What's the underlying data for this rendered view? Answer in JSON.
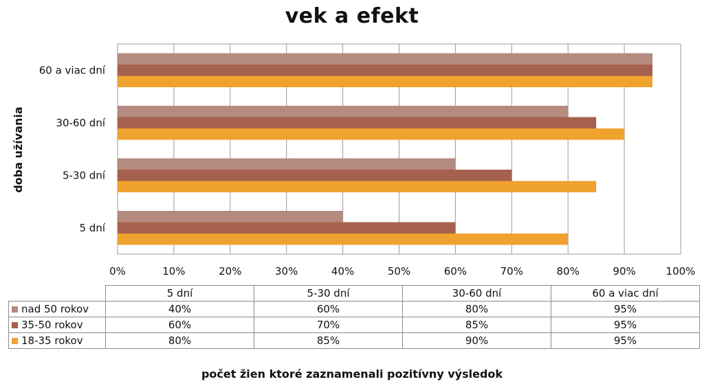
{
  "chart_data": {
    "type": "bar",
    "orientation": "horizontal",
    "title": "vek a efekt",
    "ylabel": "doba užívania",
    "xlabel": "počet žien ktoré zaznamenali pozitívny výsledok",
    "categories": [
      "5 dní",
      "5-30 dní",
      "30-60 dní",
      "60 a viac dní"
    ],
    "xlim": [
      0,
      100
    ],
    "x_ticks": [
      "0%",
      "10%",
      "20%",
      "30%",
      "40%",
      "50%",
      "60%",
      "70%",
      "80%",
      "90%",
      "100%"
    ],
    "grid": true,
    "legend": "data table",
    "series": [
      {
        "name": "nad 50 rokov",
        "color": "#B58A7F",
        "values": [
          40,
          60,
          80,
          95
        ]
      },
      {
        "name": "35-50 rokov",
        "color": "#A5614D",
        "values": [
          60,
          70,
          85,
          95
        ]
      },
      {
        "name": "18-35 rokov",
        "color": "#F0A22E",
        "values": [
          80,
          85,
          90,
          95
        ]
      }
    ]
  },
  "table": {
    "columns": [
      "5 dní",
      "5-30 dní",
      "30-60 dní",
      "60 a viac dní"
    ],
    "rows": [
      {
        "label": "nad 50 rokov",
        "cells": [
          "40%",
          "60%",
          "80%",
          "95%"
        ]
      },
      {
        "label": "35-50 rokov",
        "cells": [
          "60%",
          "70%",
          "85%",
          "95%"
        ]
      },
      {
        "label": "18-35 rokov",
        "cells": [
          "80%",
          "85%",
          "90%",
          "95%"
        ]
      }
    ]
  }
}
